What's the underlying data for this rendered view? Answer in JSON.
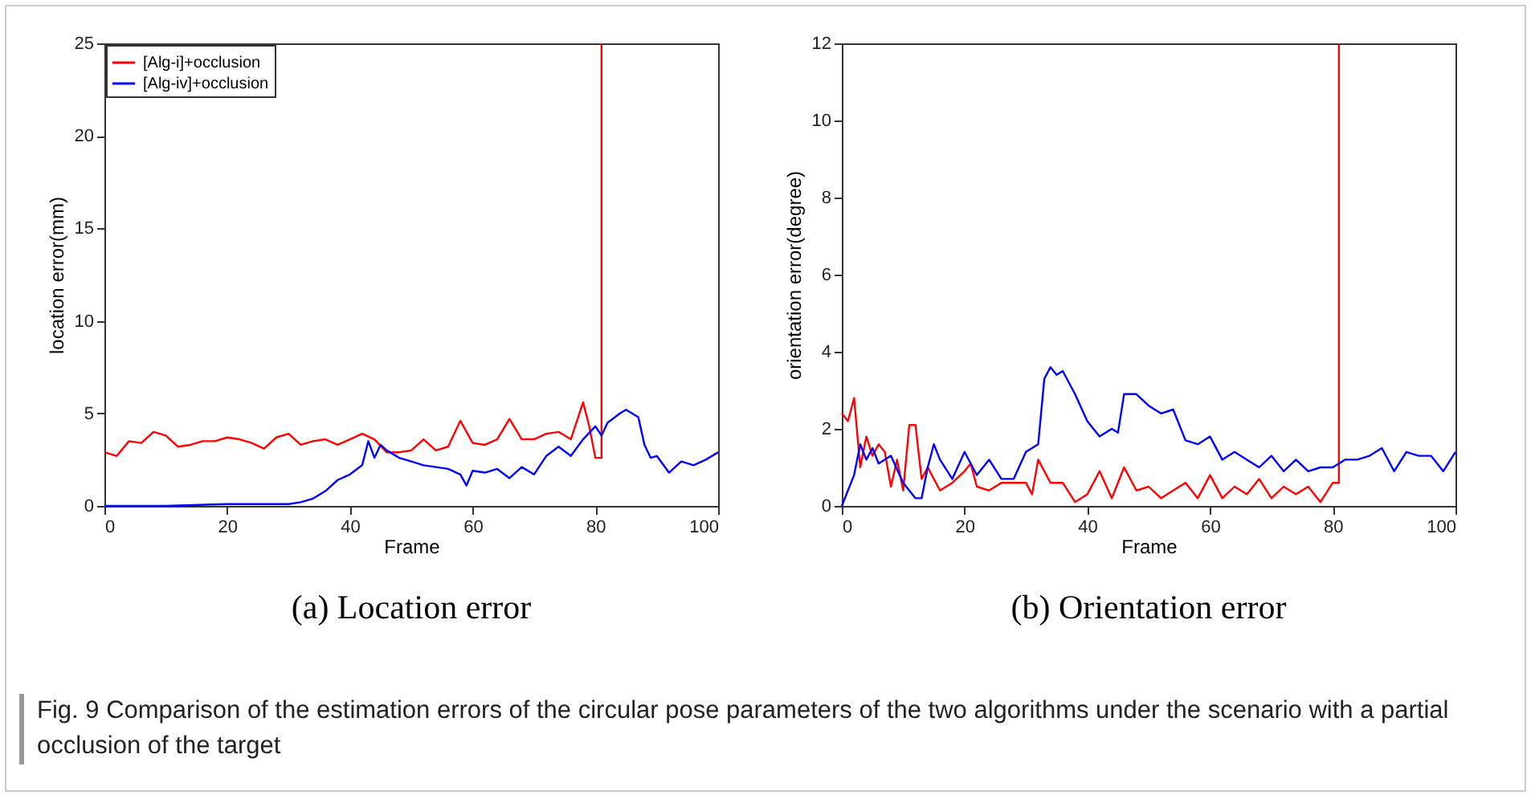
{
  "chart_data": [
    {
      "type": "line",
      "title": "(a)  Location error",
      "xlabel": "Frame",
      "ylabel": "location error(mm)",
      "xlim": [
        0,
        100
      ],
      "xticks": [
        0,
        20,
        40,
        60,
        80,
        100
      ],
      "ylim": [
        0,
        25
      ],
      "yticks": [
        0,
        5,
        10,
        15,
        20,
        25
      ],
      "grid": false,
      "legend": "top left",
      "series": [
        {
          "name": "[Alg-i]+occlusion",
          "color": "#ff0000",
          "x": [
            0,
            2,
            4,
            6,
            8,
            10,
            12,
            14,
            16,
            18,
            20,
            22,
            24,
            26,
            28,
            30,
            32,
            34,
            36,
            38,
            40,
            42,
            44,
            46,
            48,
            50,
            52,
            54,
            56,
            58,
            60,
            62,
            64,
            66,
            68,
            70,
            72,
            74,
            76,
            78,
            79,
            80,
            81,
            81
          ],
          "values": [
            2.9,
            2.7,
            3.5,
            3.4,
            4.0,
            3.8,
            3.2,
            3.3,
            3.5,
            3.5,
            3.7,
            3.6,
            3.4,
            3.1,
            3.7,
            3.9,
            3.3,
            3.5,
            3.6,
            3.3,
            3.6,
            3.9,
            3.6,
            2.9,
            2.9,
            3.0,
            3.6,
            3.0,
            3.2,
            4.6,
            3.4,
            3.3,
            3.6,
            4.7,
            3.6,
            3.6,
            3.9,
            4.0,
            3.6,
            5.6,
            4.3,
            2.6,
            2.6,
            25
          ]
        },
        {
          "name": "[Alg-iv]+occlusion",
          "color": "#0000ff",
          "x": [
            0,
            10,
            20,
            30,
            32,
            34,
            36,
            38,
            40,
            42,
            43,
            44,
            45,
            46,
            48,
            50,
            52,
            54,
            56,
            58,
            59,
            60,
            62,
            64,
            66,
            68,
            70,
            72,
            74,
            76,
            78,
            80,
            81,
            82,
            84,
            85,
            87,
            88,
            89,
            90,
            92,
            94,
            96,
            98,
            100
          ],
          "values": [
            0,
            0,
            0.1,
            0.1,
            0.2,
            0.4,
            0.8,
            1.4,
            1.7,
            2.2,
            3.5,
            2.6,
            3.3,
            3.0,
            2.6,
            2.4,
            2.2,
            2.1,
            2.0,
            1.7,
            1.1,
            1.9,
            1.8,
            2.0,
            1.5,
            2.1,
            1.7,
            2.7,
            3.2,
            2.7,
            3.6,
            4.3,
            3.8,
            4.5,
            5.0,
            5.2,
            4.8,
            3.3,
            2.6,
            2.7,
            1.8,
            2.4,
            2.2,
            2.5,
            2.9
          ]
        }
      ],
      "annotations": [
        "Fig. 9  Comparison of the estimation errors of the circular pose parameters of the two algorithms under the scenario with a partial occlusion of the target"
      ]
    },
    {
      "type": "line",
      "title": "(b)  Orientation error",
      "xlabel": "Frame",
      "ylabel": "orientation error(degree)",
      "xlim": [
        0,
        100
      ],
      "xticks": [
        0,
        20,
        40,
        60,
        80,
        100
      ],
      "ylim": [
        0,
        12
      ],
      "yticks": [
        0,
        2,
        4,
        6,
        8,
        10,
        12
      ],
      "grid": false,
      "legend": "top left",
      "series": [
        {
          "name": "[Alg-i]+occlusion",
          "color": "#ff0000",
          "x": [
            0,
            1,
            2,
            3,
            4,
            5,
            6,
            7,
            8,
            9,
            10,
            11,
            12,
            13,
            14,
            16,
            18,
            20,
            21,
            22,
            24,
            26,
            28,
            30,
            31,
            32,
            34,
            36,
            38,
            40,
            42,
            44,
            46,
            48,
            50,
            52,
            54,
            56,
            58,
            60,
            62,
            64,
            66,
            68,
            70,
            72,
            74,
            76,
            78,
            80,
            81,
            81
          ],
          "values": [
            2.4,
            2.2,
            2.8,
            1.0,
            1.8,
            1.3,
            1.6,
            1.4,
            0.5,
            1.2,
            0.4,
            2.1,
            2.1,
            0.7,
            1.0,
            0.4,
            0.6,
            0.9,
            1.1,
            0.5,
            0.4,
            0.6,
            0.6,
            0.6,
            0.3,
            1.2,
            0.6,
            0.6,
            0.1,
            0.3,
            0.9,
            0.2,
            1.0,
            0.4,
            0.5,
            0.2,
            0.4,
            0.6,
            0.2,
            0.8,
            0.2,
            0.5,
            0.3,
            0.7,
            0.2,
            0.5,
            0.3,
            0.5,
            0.1,
            0.6,
            0.6,
            12
          ]
        },
        {
          "name": "[Alg-iv]+occlusion",
          "color": "#0000ff",
          "x": [
            0,
            2,
            3,
            4,
            5,
            6,
            8,
            10,
            12,
            13,
            14,
            15,
            16,
            18,
            20,
            22,
            24,
            26,
            28,
            30,
            32,
            33,
            34,
            35,
            36,
            38,
            40,
            42,
            44,
            45,
            46,
            48,
            50,
            52,
            54,
            56,
            58,
            60,
            62,
            64,
            66,
            68,
            70,
            72,
            74,
            76,
            78,
            80,
            82,
            84,
            86,
            88,
            90,
            92,
            94,
            96,
            98,
            100
          ],
          "values": [
            0,
            0.8,
            1.6,
            1.2,
            1.5,
            1.1,
            1.3,
            0.6,
            0.2,
            0.2,
            1.0,
            1.6,
            1.2,
            0.7,
            1.4,
            0.8,
            1.2,
            0.7,
            0.7,
            1.4,
            1.6,
            3.3,
            3.6,
            3.4,
            3.5,
            2.9,
            2.2,
            1.8,
            2.0,
            1.9,
            2.9,
            2.9,
            2.6,
            2.4,
            2.5,
            1.7,
            1.6,
            1.8,
            1.2,
            1.4,
            1.2,
            1.0,
            1.3,
            0.9,
            1.2,
            0.9,
            1.0,
            1.0,
            1.2,
            1.2,
            1.3,
            1.5,
            0.9,
            1.4,
            1.3,
            1.3,
            0.9,
            1.4
          ]
        }
      ]
    }
  ]
}
